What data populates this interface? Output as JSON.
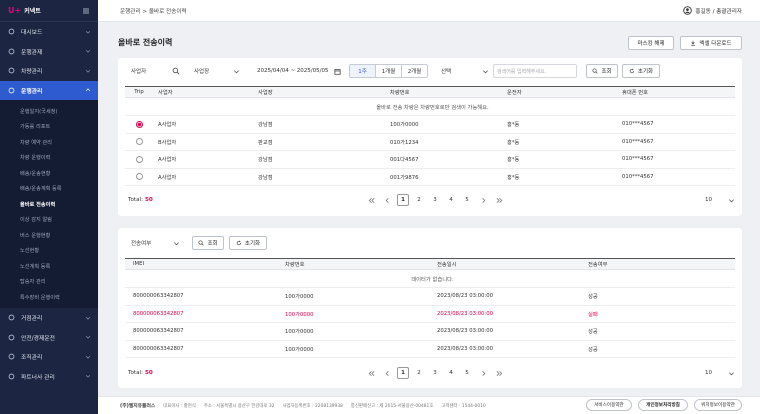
{
  "sidebar": {
    "logo_mark": "U+",
    "logo_text": "커넥트",
    "menu_top": [
      "대시보드",
      "운행관제",
      "차량관리",
      "운행관리"
    ],
    "active_menu": 3,
    "submenu": [
      "운행일지(국세청)",
      "가동률 리포트",
      "차량 예약 관리",
      "차량 운행이력",
      "배송/운송현황",
      "배송/운송계획 등록",
      "올바로 전송이력",
      "이상 감지 알림",
      "버스 운행현황",
      "노선현황",
      "노선계획 등록",
      "탑승자 관리",
      "특수장비 운행이력"
    ],
    "active_submenu": 6,
    "menu_bottom": [
      "거점관리",
      "안전/경제운전",
      "조직관리",
      "파트너사 관리"
    ]
  },
  "header": {
    "breadcrumb": "운행관리 > 올바로 전송이력",
    "user": "홍길동 / 총괄관리자"
  },
  "page": {
    "title": "올바로 전송이력",
    "buttons": [
      "마스킹 해제",
      "엑셀 다운로드"
    ]
  },
  "filters": {
    "company": "사업자",
    "site": "사업장",
    "date_range": "2025/04/04 ~ 2025/05/05",
    "periods": [
      "1주",
      "1개월",
      "2개월"
    ],
    "active_period": 0,
    "select": "선택",
    "search_placeholder": "검색어를 입력해주세요.",
    "search": "조회",
    "reset": "초기화"
  },
  "trip_table": {
    "columns": [
      "Trip",
      "사업자",
      "사업장",
      "차량번호",
      "운전자",
      "휴대폰 번호"
    ],
    "notice": "올바로 전송 차량은 차량번호로만 검색이 가능해요.",
    "rows": [
      [
        "A사업자",
        "강남점",
        "100가0000",
        "홍*동",
        "010***4567"
      ],
      [
        "B사업자",
        "판교점",
        "010가1234",
        "홍*동",
        "010***4567"
      ],
      [
        "A사업자",
        "강남점",
        "001다4567",
        "홍*동",
        "010***4567"
      ],
      [
        "A사업자",
        "강남점",
        "001가9876",
        "홍*동",
        "010***4567"
      ]
    ],
    "selected_row": 0,
    "total_label": "Total:",
    "total": 50,
    "pages": [
      1,
      2,
      3,
      4,
      5
    ],
    "current_page": 1,
    "page_size": 10
  },
  "transfer_filters": {
    "status": "전송여부",
    "search": "조회",
    "reset": "초기화"
  },
  "transfer_table": {
    "columns": [
      "IMEI",
      "차량번호",
      "전송일시",
      "전송여부"
    ],
    "empty": "데이터가 없습니다.",
    "rows": [
      [
        "800000063342807",
        "100가0000",
        "2023/08/23 03:00:00",
        "성공"
      ],
      [
        "800000063342807",
        "100가0000",
        "2023/08/23 03:00:00",
        "실패"
      ],
      [
        "800000063342807",
        "100가0000",
        "2023/08/23 03:00:00",
        "성공"
      ],
      [
        "800000063342807",
        "100가0000",
        "2023/08/23 03:00:00",
        "성공"
      ]
    ],
    "highlight_row": 1,
    "total_label": "Total:",
    "total": 50,
    "pages": [
      1,
      2,
      3,
      4,
      5
    ],
    "current_page": 1,
    "page_size": 10
  },
  "footer": {
    "company": "(주)엘지유플러스",
    "info": [
      "대표이사 : 황현식",
      "주소 : 서울특별시 용산구 한강대로 32",
      "사업자등록번호 : 2208139938",
      "통신판매신고 : 제 2015-서울용산-00481호",
      "고객센터 : 1544-0010"
    ],
    "links": [
      "서비스이용약관",
      "개인정보처리방침",
      "위치정보이용약관"
    ]
  }
}
